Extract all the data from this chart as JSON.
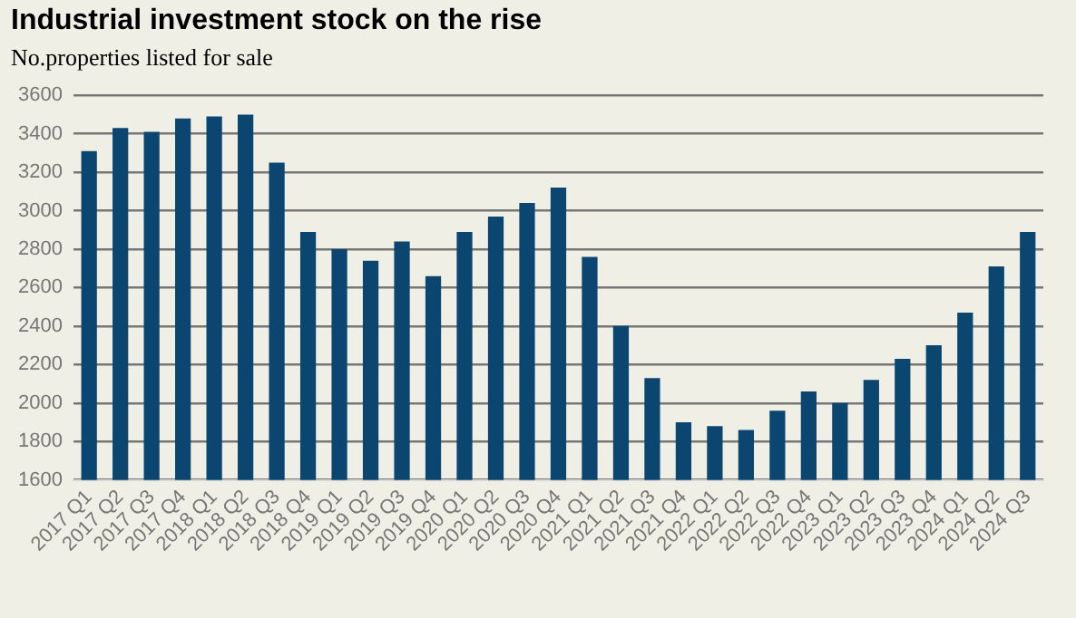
{
  "chart_data": {
    "type": "bar",
    "title": "Industrial investment stock on the rise",
    "subtitle": "No.properties listed for sale",
    "categories": [
      "2017 Q1",
      "2017 Q2",
      "2017 Q3",
      "2017 Q4",
      "2018 Q1",
      "2018 Q2",
      "2018 Q3",
      "2018 Q4",
      "2019 Q1",
      "2019 Q2",
      "2019 Q3",
      "2019 Q4",
      "2020 Q1",
      "2020 Q2",
      "2020 Q3",
      "2020 Q4",
      "2021 Q1",
      "2021 Q2",
      "2021 Q3",
      "2021 Q4",
      "2022 Q1",
      "2022 Q2",
      "2022 Q3",
      "2022 Q4",
      "2023 Q1",
      "2023 Q2",
      "2023 Q3",
      "2023 Q4",
      "2024 Q1",
      "2024 Q2",
      "2024 Q3"
    ],
    "values": [
      3310,
      3430,
      3410,
      3480,
      3490,
      3500,
      3250,
      2890,
      2800,
      2740,
      2840,
      2660,
      2890,
      2970,
      3040,
      3120,
      2760,
      2400,
      2130,
      1900,
      1880,
      1860,
      1960,
      2060,
      2000,
      2120,
      2230,
      2300,
      2470,
      2710,
      2890
    ],
    "color": "#0a4670",
    "ylim": [
      1600,
      3600
    ],
    "yticks": [
      1600,
      1800,
      2000,
      2200,
      2400,
      2600,
      2800,
      3000,
      3200,
      3400,
      3600
    ],
    "grid": "y",
    "legend": false
  }
}
